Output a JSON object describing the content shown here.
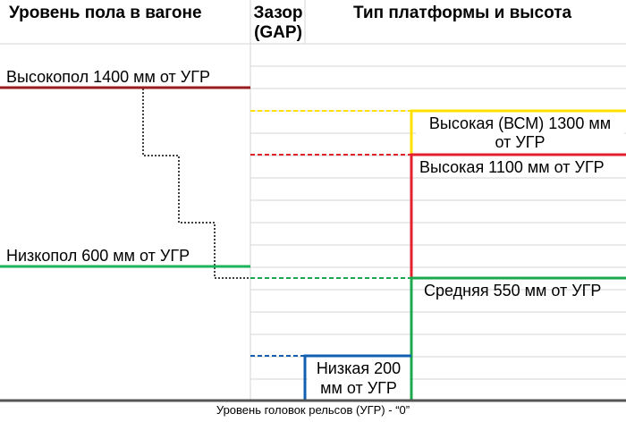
{
  "headers": {
    "car_floor": "Уровень пола в вагоне",
    "gap": "Зазор\n(GAP)",
    "platform": "Тип платформы и высота"
  },
  "car_levels": {
    "high_floor": "Высокопол 1400 мм от УГР",
    "low_floor": "Низкопол 600 мм от УГР"
  },
  "platforms": {
    "high_vsm": "Высокая (ВСМ) 1300 мм\nот УГР",
    "high": "Высокая 1100 мм от УГР",
    "medium": "Средняя 550 мм от УГР",
    "low": "Низкая 200\nмм от УГР"
  },
  "footer": "Уровень головок рельсов (УГР) - “0”",
  "colors": {
    "high_floor": "#9b1c1c",
    "low_floor": "#1db35a",
    "high_vsm": "#ffe100",
    "high": "#e3202c",
    "medium": "#1ca84c",
    "low": "#1160b0",
    "grid": "#d6d6d6",
    "rail": "#555555"
  }
}
